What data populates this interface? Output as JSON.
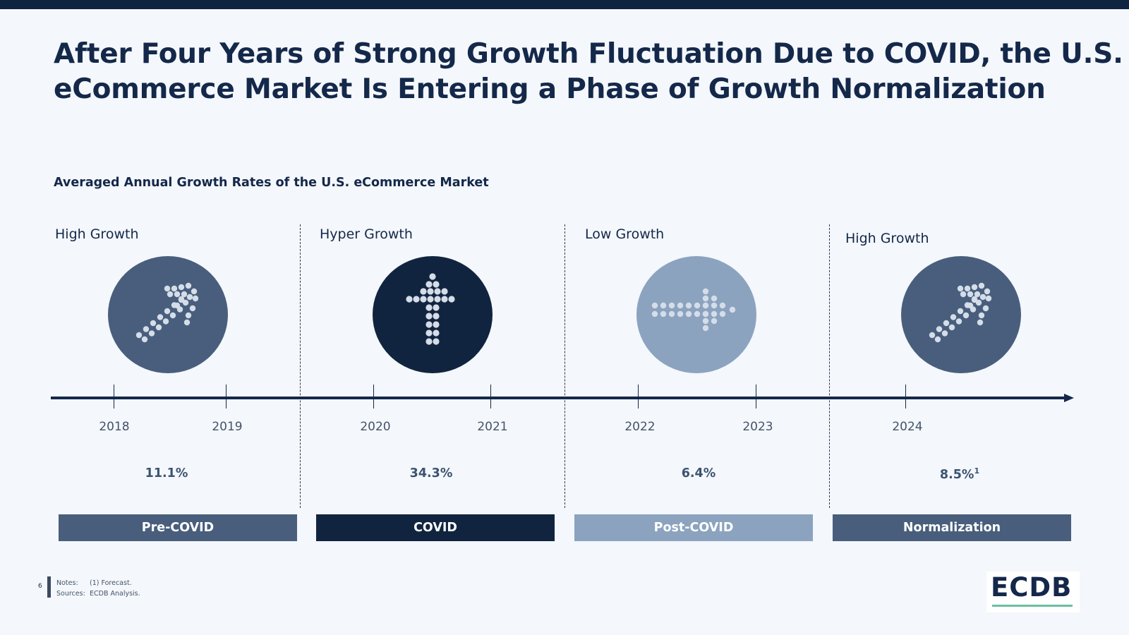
{
  "title_lines": [
    "After Four Years of Strong Growth Fluctuation Due to COVID, the U.S.",
    "eCommerce Market Is Entering a Phase of Growth Normalization"
  ],
  "subtitle": "Averaged Annual Growth Rates of the U.S. eCommerce Market",
  "phases": [
    {
      "growth_label": "High Growth",
      "icon": "arrow-up-right-icon",
      "circle_color": "#485e7c",
      "years": [
        "2018",
        "2019"
      ],
      "rate": "11.1%",
      "rate_note": "",
      "band_label": "Pre-COVID",
      "band_color": "#485e7c"
    },
    {
      "growth_label": "Hyper Growth",
      "icon": "arrow-up-icon",
      "circle_color": "#11243f",
      "years": [
        "2020",
        "2021"
      ],
      "rate": "34.3%",
      "rate_note": "",
      "band_label": "COVID",
      "band_color": "#11243f"
    },
    {
      "growth_label": "Low Growth",
      "icon": "arrow-right-icon",
      "circle_color": "#8ba3bf",
      "years": [
        "2022",
        "2023"
      ],
      "rate": "6.4%",
      "rate_note": "",
      "band_label": "Post-COVID",
      "band_color": "#8ba3bf"
    },
    {
      "growth_label": "High Growth",
      "icon": "arrow-up-right-icon",
      "circle_color": "#485e7c",
      "years": [
        "2024"
      ],
      "rate": "8.5%",
      "rate_note": "1",
      "band_label": "Normalization",
      "band_color": "#485e7c"
    }
  ],
  "footer": {
    "page_number": "6",
    "notes_label": "Notes:",
    "notes_text": "(1) Forecast.",
    "sources_label": "Sources:",
    "sources_text": "ECDB Analysis."
  },
  "logo": {
    "text": "ECDB",
    "accent_color": "#6abf9f"
  },
  "colors": {
    "primary": "#14284a",
    "background": "#f4f7fb",
    "dot": "#d4dde8"
  }
}
